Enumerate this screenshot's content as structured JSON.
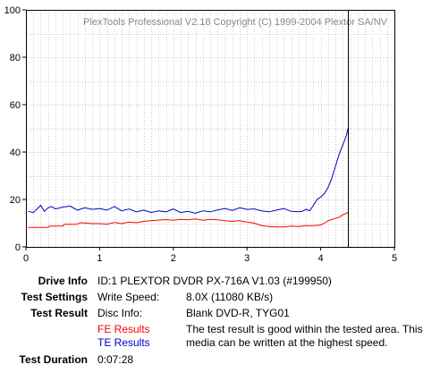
{
  "chart_data": {
    "type": "line",
    "title": "",
    "watermark": "PlexTools Professional V2.18 Copyright (C) 1999-2004 Plextor SA/NV",
    "xlabel": "",
    "ylabel": "",
    "xlim": [
      0,
      5
    ],
    "ylim": [
      0,
      100
    ],
    "x_ticks": [
      "0",
      "1",
      "2",
      "3",
      "4",
      "5"
    ],
    "y_ticks": [
      "0",
      "20",
      "40",
      "60",
      "80",
      "100"
    ],
    "grid": true,
    "legend": "none",
    "marker_line": {
      "x": 4.37,
      "color": "#000000"
    },
    "series": [
      {
        "label_ref": "info.fe_label",
        "color": "#ff0000",
        "x": [
          0.03,
          0.3,
          0.32,
          0.5,
          0.52,
          0.6,
          0.68,
          0.75,
          0.9,
          1.0,
          1.1,
          1.2,
          1.3,
          1.4,
          1.5,
          1.6,
          1.7,
          1.8,
          1.9,
          2.0,
          2.1,
          2.2,
          2.3,
          2.4,
          2.5,
          2.6,
          2.7,
          2.8,
          2.9,
          3.0,
          3.1,
          3.2,
          3.3,
          3.4,
          3.5,
          3.6,
          3.7,
          3.8,
          3.9,
          4.0,
          4.05,
          4.1,
          4.15,
          4.2,
          4.25,
          4.3,
          4.35,
          4.37
        ],
        "y": [
          8.2,
          8.2,
          8.8,
          8.8,
          9.5,
          9.5,
          9.5,
          10.2,
          9.8,
          9.8,
          9.6,
          10.3,
          9.8,
          10.5,
          10.2,
          10.8,
          11.0,
          11.3,
          11.5,
          11.2,
          11.6,
          11.4,
          11.8,
          11.2,
          11.6,
          11.4,
          11.0,
          10.8,
          11.0,
          10.5,
          10.0,
          9.0,
          8.6,
          8.4,
          8.4,
          8.8,
          8.6,
          9.0,
          9.0,
          9.2,
          10.0,
          11.0,
          11.5,
          12.0,
          12.5,
          13.5,
          14.2,
          14.6
        ]
      },
      {
        "label_ref": "info.te_label",
        "color": "#0000c8",
        "x": [
          0.03,
          0.1,
          0.15,
          0.2,
          0.25,
          0.3,
          0.35,
          0.4,
          0.5,
          0.6,
          0.7,
          0.8,
          0.9,
          1.0,
          1.1,
          1.2,
          1.3,
          1.4,
          1.5,
          1.6,
          1.7,
          1.8,
          1.9,
          2.0,
          2.1,
          2.2,
          2.3,
          2.4,
          2.5,
          2.6,
          2.7,
          2.8,
          2.9,
          3.0,
          3.1,
          3.2,
          3.3,
          3.4,
          3.5,
          3.6,
          3.7,
          3.75,
          3.8,
          3.85,
          3.9,
          3.95,
          4.0,
          4.05,
          4.1,
          4.15,
          4.2,
          4.25,
          4.3,
          4.35,
          4.37
        ],
        "y": [
          15.0,
          14.5,
          16.0,
          17.5,
          15.0,
          16.5,
          17.0,
          16.0,
          16.8,
          17.2,
          15.5,
          16.5,
          15.8,
          16.2,
          15.5,
          17.0,
          15.2,
          16.0,
          14.8,
          15.5,
          14.5,
          15.2,
          14.8,
          16.0,
          14.5,
          15.0,
          14.2,
          15.2,
          14.8,
          15.6,
          16.2,
          15.4,
          16.5,
          15.8,
          16.0,
          15.2,
          14.8,
          15.5,
          16.2,
          15.0,
          14.8,
          15.0,
          15.8,
          15.2,
          17.5,
          20.0,
          21.0,
          22.5,
          25.0,
          29.0,
          34.0,
          39.0,
          43.0,
          47.0,
          50.0
        ]
      }
    ]
  },
  "info": {
    "drive_label": "Drive Info",
    "drive_value": "ID:1 PLEXTOR DVDR PX-716A V1.03 (#199950)",
    "settings_label": "Test Settings",
    "settings_key": "Write Speed:",
    "settings_value": "8.0X (11080 KB/s)",
    "result_label": "Test Result",
    "result_key": "Disc Info:",
    "result_value": "Blank DVD-R, TYG01",
    "fe_label": "FE Results",
    "te_label": "TE Results",
    "fe_color": "#ff0000",
    "te_color": "#0000c8",
    "result_text": "The test result is good within the tested area. This media can be written at the highest speed.",
    "duration_label": "Test Duration",
    "duration_value": "0:07:28"
  }
}
